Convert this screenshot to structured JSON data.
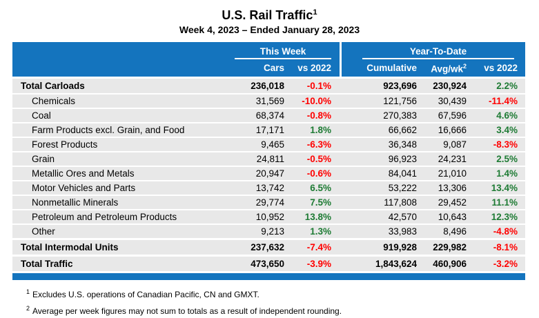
{
  "colors": {
    "header_blue": "#1474BE",
    "row_gray": "#E8E8E8",
    "negative_red": "#FF0000",
    "positive_green": "#1E7B34"
  },
  "chart_data": {
    "type": "table",
    "title": "U.S. Rail Traffic",
    "title_footnote_marker": "1",
    "subtitle": "Week 4, 2023 – Ended January 28, 2023",
    "column_groups": [
      {
        "label": "This Week",
        "columns": [
          "Cars",
          "vs 2022"
        ]
      },
      {
        "label": "Year-To-Date",
        "columns": [
          "Cumulative",
          "Avg/wk",
          "vs 2022"
        ]
      }
    ],
    "columns": [
      "Cars",
      "vs 2022",
      "Cumulative",
      "Avg/wk",
      "vs 2022"
    ],
    "avg_wk_footnote_marker": "2",
    "rows": [
      {
        "label": "Total Carloads",
        "style": "total",
        "cars": "236,018",
        "cars_vs_2022": "-0.1%",
        "cumulative": "923,696",
        "avg_per_week": "230,924",
        "ytd_vs_2022": "2.2%"
      },
      {
        "label": "Chemicals",
        "style": "item",
        "cars": "31,569",
        "cars_vs_2022": "-10.0%",
        "cumulative": "121,756",
        "avg_per_week": "30,439",
        "ytd_vs_2022": "-11.4%"
      },
      {
        "label": "Coal",
        "style": "item",
        "cars": "68,374",
        "cars_vs_2022": "-0.8%",
        "cumulative": "270,383",
        "avg_per_week": "67,596",
        "ytd_vs_2022": "4.6%"
      },
      {
        "label": "Farm Products excl. Grain, and Food",
        "style": "item",
        "cars": "17,171",
        "cars_vs_2022": "1.8%",
        "cumulative": "66,662",
        "avg_per_week": "16,666",
        "ytd_vs_2022": "3.4%"
      },
      {
        "label": "Forest Products",
        "style": "item",
        "cars": "9,465",
        "cars_vs_2022": "-6.3%",
        "cumulative": "36,348",
        "avg_per_week": "9,087",
        "ytd_vs_2022": "-8.3%"
      },
      {
        "label": "Grain",
        "style": "item",
        "cars": "24,811",
        "cars_vs_2022": "-0.5%",
        "cumulative": "96,923",
        "avg_per_week": "24,231",
        "ytd_vs_2022": "2.5%"
      },
      {
        "label": "Metallic Ores and Metals",
        "style": "item",
        "cars": "20,947",
        "cars_vs_2022": "-0.6%",
        "cumulative": "84,041",
        "avg_per_week": "21,010",
        "ytd_vs_2022": "1.4%"
      },
      {
        "label": "Motor Vehicles and Parts",
        "style": "item",
        "cars": "13,742",
        "cars_vs_2022": "6.5%",
        "cumulative": "53,222",
        "avg_per_week": "13,306",
        "ytd_vs_2022": "13.4%"
      },
      {
        "label": "Nonmetallic Minerals",
        "style": "item",
        "cars": "29,774",
        "cars_vs_2022": "7.5%",
        "cumulative": "117,808",
        "avg_per_week": "29,452",
        "ytd_vs_2022": "11.1%"
      },
      {
        "label": "Petroleum and Petroleum Products",
        "style": "item",
        "cars": "10,952",
        "cars_vs_2022": "13.8%",
        "cumulative": "42,570",
        "avg_per_week": "10,643",
        "ytd_vs_2022": "12.3%"
      },
      {
        "label": "Other",
        "style": "item",
        "cars": "9,213",
        "cars_vs_2022": "1.3%",
        "cumulative": "33,983",
        "avg_per_week": "8,496",
        "ytd_vs_2022": "-4.8%"
      },
      {
        "label": "Total Intermodal Units",
        "style": "total",
        "cars": "237,632",
        "cars_vs_2022": "-7.4%",
        "cumulative": "919,928",
        "avg_per_week": "229,982",
        "ytd_vs_2022": "-8.1%"
      },
      {
        "label": "Total Traffic",
        "style": "total",
        "cars": "473,650",
        "cars_vs_2022": "-3.9%",
        "cumulative": "1,843,624",
        "avg_per_week": "460,906",
        "ytd_vs_2022": "-3.2%"
      }
    ]
  },
  "footnotes": [
    {
      "marker": "1",
      "text": "Excludes U.S. operations of Canadian Pacific, CN and GMXT."
    },
    {
      "marker": "2",
      "text": "Average per week figures may not sum to totals as a result of independent rounding."
    }
  ]
}
